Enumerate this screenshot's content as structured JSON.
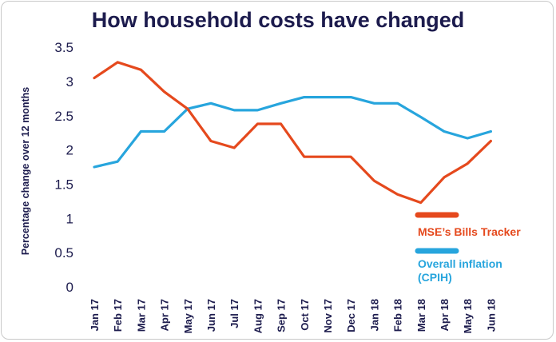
{
  "chart_data": {
    "type": "line",
    "title": "How household costs have changed",
    "xlabel": "",
    "ylabel": "Percentage change over 12 months",
    "ylim": [
      0,
      3.5
    ],
    "yticks": [
      "0",
      "0.5",
      "1",
      "1.5",
      "2",
      "2.5",
      "3",
      "3.5"
    ],
    "grid": false,
    "legend_position": "bottom-right",
    "categories": [
      "Jan 17",
      "Feb 17",
      "Mar 17",
      "Apr 17",
      "May 17",
      "Jun 17",
      "Jul 17",
      "Aug 17",
      "Sep 17",
      "Oct 17",
      "Nov 17",
      "Dec 17",
      "Jan 18",
      "Feb 18",
      "Mar 18",
      "Apr 18",
      "May 18",
      "Jun 18"
    ],
    "series": [
      {
        "name": "MSE’s Bills Tracker",
        "color": "#e5491d",
        "values": [
          3.05,
          3.28,
          3.17,
          2.85,
          2.6,
          2.13,
          2.03,
          2.38,
          2.38,
          1.9,
          1.9,
          1.9,
          1.55,
          1.35,
          1.23,
          1.6,
          1.8,
          2.13
        ]
      },
      {
        "name": "Overall inflation (CPIH)",
        "color": "#27a5dd",
        "values": [
          1.75,
          1.83,
          2.27,
          2.27,
          2.6,
          2.68,
          2.58,
          2.58,
          2.68,
          2.77,
          2.77,
          2.77,
          2.68,
          2.68,
          2.48,
          2.27,
          2.17,
          2.27
        ]
      }
    ]
  },
  "legend": {
    "bills_label": "MSE’s Bills Tracker",
    "cpih_label_line1": "Overall inflation",
    "cpih_label_line2": "(CPIH)"
  }
}
